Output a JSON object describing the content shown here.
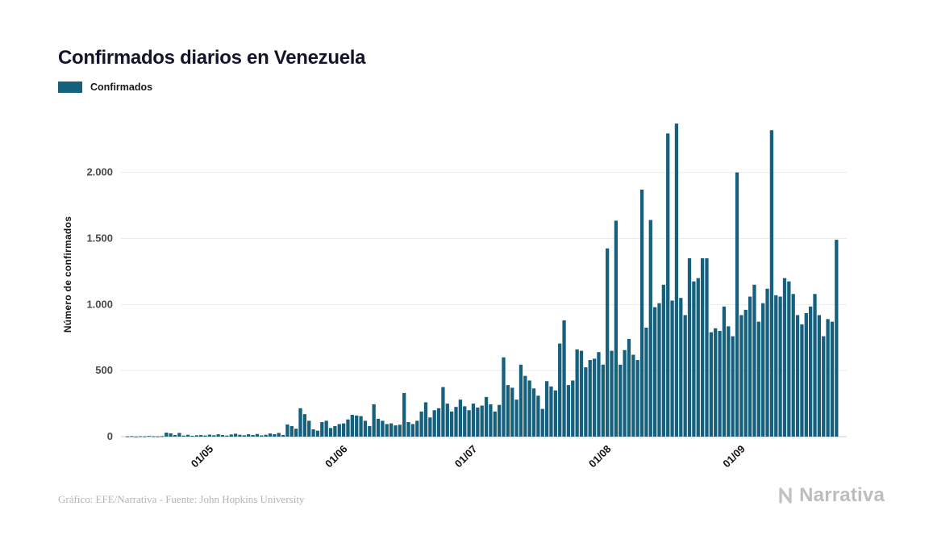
{
  "page": {
    "title": "Confirmados diarios en Venezuela",
    "footer_source": "Gráfico: EFE/Narrativa - Fuente: John Hopkins University",
    "brand": "Narrativa"
  },
  "legend": {
    "label": "Confirmados",
    "color": "#15607d"
  },
  "chart_data": {
    "type": "bar",
    "title": "Confirmados diarios en Venezuela",
    "series_name": "Confirmados",
    "xlabel": "",
    "ylabel": "Número de confirmados",
    "bar_color": "#15607d",
    "grid": "horizontal",
    "legend_position": "top-left",
    "ylim": [
      0,
      2450
    ],
    "y_ticks": [
      {
        "value": 0,
        "label": "0"
      },
      {
        "value": 500,
        "label": "500"
      },
      {
        "value": 1000,
        "label": "1.000"
      },
      {
        "value": 1500,
        "label": "1.500"
      },
      {
        "value": 2000,
        "label": "2.000"
      }
    ],
    "x_ticks": [
      {
        "index": 21,
        "label": "01/05"
      },
      {
        "index": 52,
        "label": "01/06"
      },
      {
        "index": 82,
        "label": "01/07"
      },
      {
        "index": 113,
        "label": "01/08"
      },
      {
        "index": 144,
        "label": "01/09"
      }
    ],
    "values": [
      0,
      2,
      4,
      1,
      3,
      2,
      5,
      3,
      2,
      4,
      30,
      25,
      12,
      28,
      8,
      14,
      6,
      10,
      12,
      8,
      15,
      10,
      18,
      12,
      8,
      16,
      22,
      14,
      10,
      18,
      12,
      20,
      9,
      14,
      24,
      18,
      28,
      12,
      92,
      80,
      60,
      215,
      170,
      120,
      55,
      45,
      110,
      120,
      65,
      80,
      95,
      100,
      130,
      165,
      160,
      155,
      120,
      80,
      245,
      135,
      120,
      95,
      100,
      85,
      90,
      330,
      110,
      95,
      120,
      190,
      260,
      145,
      200,
      215,
      375,
      250,
      190,
      225,
      280,
      230,
      200,
      250,
      220,
      235,
      300,
      245,
      190,
      240,
      600,
      390,
      370,
      280,
      545,
      460,
      425,
      365,
      310,
      210,
      420,
      380,
      350,
      705,
      880,
      390,
      425,
      660,
      650,
      525,
      580,
      590,
      640,
      545,
      1425,
      650,
      1635,
      545,
      655,
      740,
      620,
      580,
      1870,
      825,
      1640,
      980,
      1010,
      1150,
      2295,
      1030,
      2370,
      1050,
      920,
      1350,
      1175,
      1200,
      1350,
      1350,
      790,
      820,
      800,
      985,
      835,
      760,
      2000,
      920,
      960,
      1060,
      1150,
      870,
      1010,
      1120,
      2320,
      1070,
      1060,
      1200,
      1175,
      1080,
      920,
      850,
      935,
      985,
      1080,
      920,
      760,
      890,
      870,
      1490
    ]
  }
}
